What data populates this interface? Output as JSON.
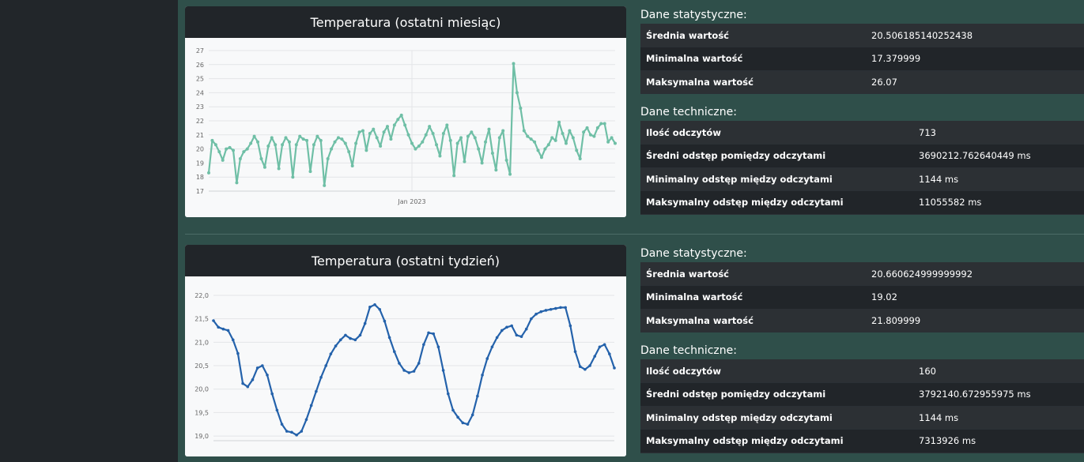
{
  "sections": [
    {
      "chart_title": "Temperatura (ostatni miesiąc)",
      "stats_title": "Dane statystyczne:",
      "stats": [
        {
          "label": "Średnia wartość",
          "value": "20.506185140252438"
        },
        {
          "label": "Minimalna wartość",
          "value": "17.379999"
        },
        {
          "label": "Maksymalna wartość",
          "value": "26.07"
        }
      ],
      "tech_title": "Dane techniczne:",
      "tech": [
        {
          "label": "Ilość odczytów",
          "value": "713"
        },
        {
          "label": "Średni odstęp pomiędzy odczytami",
          "value": "3690212.762640449 ms"
        },
        {
          "label": "Minimalny odstęp między odczytami",
          "value": "1144 ms"
        },
        {
          "label": "Maksymalny odstęp między odczytami",
          "value": "11055582 ms"
        }
      ]
    },
    {
      "chart_title": "Temperatura (ostatni tydzień)",
      "stats_title": "Dane statystyczne:",
      "stats": [
        {
          "label": "Średnia wartość",
          "value": "20.660624999999992"
        },
        {
          "label": "Minimalna wartość",
          "value": "19.02"
        },
        {
          "label": "Maksymalna wartość",
          "value": "21.809999"
        }
      ],
      "tech_title": "Dane techniczne:",
      "tech": [
        {
          "label": "Ilość odczytów",
          "value": "160"
        },
        {
          "label": "Średni odstęp pomiędzy odczytami",
          "value": "3792140.672955975 ms"
        },
        {
          "label": "Minimalny odstęp między odczytami",
          "value": "1144 ms"
        },
        {
          "label": "Maksymalny odstęp między odczytami",
          "value": "7313926 ms"
        }
      ]
    }
  ],
  "chart_data": [
    {
      "type": "line",
      "title": "Temperatura (ostatni miesiąc)",
      "color": "#6fbfa6",
      "ylim": [
        17,
        27
      ],
      "yticks": [
        "27",
        "26",
        "25",
        "24",
        "23",
        "22",
        "21",
        "20",
        "19",
        "18",
        "17"
      ],
      "xtick_label": "Jan 2023",
      "grid": true,
      "values": [
        18.3,
        20.6,
        20.3,
        19.8,
        19.2,
        20.0,
        20.1,
        19.9,
        17.6,
        19.3,
        19.8,
        20.0,
        20.4,
        20.9,
        20.5,
        19.3,
        18.7,
        20.2,
        20.8,
        20.3,
        18.6,
        20.3,
        20.8,
        20.5,
        18.0,
        20.3,
        20.9,
        20.7,
        20.6,
        18.4,
        20.3,
        20.9,
        20.6,
        17.4,
        19.3,
        20.0,
        20.5,
        20.8,
        20.7,
        20.4,
        19.8,
        18.8,
        20.4,
        21.2,
        21.3,
        19.9,
        21.1,
        21.4,
        20.8,
        20.2,
        21.2,
        21.6,
        20.7,
        21.7,
        22.1,
        22.4,
        21.7,
        21.0,
        20.4,
        20.0,
        20.2,
        20.5,
        21.0,
        21.6,
        21.1,
        20.3,
        19.5,
        21.1,
        21.7,
        20.6,
        18.1,
        20.4,
        20.8,
        19.1,
        20.9,
        21.2,
        20.8,
        20.0,
        19.0,
        20.5,
        21.4,
        19.7,
        18.5,
        20.8,
        21.3,
        19.2,
        18.2,
        26.07,
        24.0,
        22.9,
        21.3,
        20.9,
        20.7,
        20.5,
        19.9,
        19.4,
        20.0,
        20.3,
        20.8,
        20.6,
        21.9,
        21.1,
        20.4,
        21.3,
        20.8,
        19.9,
        19.3,
        21.2,
        21.5,
        21.0,
        20.9,
        21.5,
        21.8,
        21.8,
        20.5,
        20.8,
        20.4
      ]
    },
    {
      "type": "line",
      "title": "Temperatura (ostatni tydzień)",
      "color": "#2462ab",
      "ylim": [
        18.9,
        22.1
      ],
      "yticks": [
        "22,0",
        "21,5",
        "21,0",
        "20,5",
        "20,0",
        "19,5",
        "19,0"
      ],
      "grid": true,
      "values": [
        21.46,
        21.32,
        21.28,
        21.25,
        21.05,
        20.76,
        20.12,
        20.05,
        20.2,
        20.45,
        20.5,
        20.3,
        19.9,
        19.55,
        19.25,
        19.1,
        19.08,
        19.02,
        19.1,
        19.35,
        19.65,
        19.95,
        20.25,
        20.5,
        20.75,
        20.92,
        21.05,
        21.15,
        21.08,
        21.05,
        21.15,
        21.4,
        21.75,
        21.8,
        21.7,
        21.45,
        21.1,
        20.8,
        20.55,
        20.4,
        20.35,
        20.38,
        20.55,
        20.95,
        21.2,
        21.18,
        20.9,
        20.4,
        19.9,
        19.55,
        19.4,
        19.28,
        19.25,
        19.45,
        19.85,
        20.3,
        20.65,
        20.9,
        21.1,
        21.25,
        21.32,
        21.35,
        21.15,
        21.12,
        21.28,
        21.5,
        21.6,
        21.65,
        21.68,
        21.7,
        21.72,
        21.74,
        21.74,
        21.35,
        20.8,
        20.48,
        20.42,
        20.5,
        20.7,
        20.9,
        20.95,
        20.75,
        20.45
      ]
    }
  ]
}
